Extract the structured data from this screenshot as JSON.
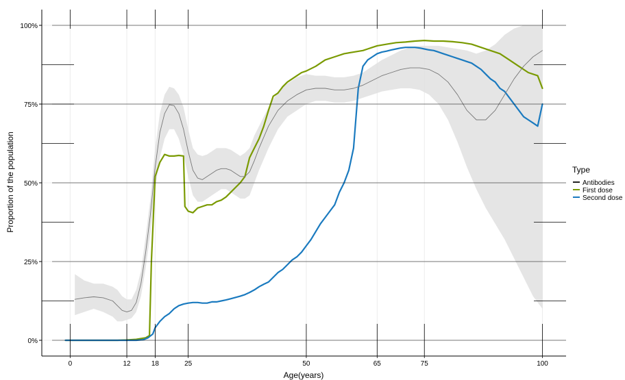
{
  "chart_data": {
    "type": "line",
    "title": "",
    "xlabel": "Age(years)",
    "ylabel": "Proportion of the population",
    "x_ticks": [
      0,
      12,
      18,
      25,
      50,
      65,
      75,
      100
    ],
    "y_ticks": [
      0,
      0.25,
      0.5,
      0.75,
      1.0
    ],
    "y_tick_labels": [
      "0%",
      "25%",
      "50%",
      "75%",
      "100%"
    ],
    "xlim": [
      -6,
      105
    ],
    "ylim": [
      -0.05,
      1.05
    ],
    "legend": {
      "title": "Type",
      "position": "right",
      "entries": [
        {
          "label": "Antibodies",
          "color": "#222222"
        },
        {
          "label": "First dose",
          "color": "#7a9a01"
        },
        {
          "label": "Second dose",
          "color": "#1a7abf"
        }
      ]
    },
    "colors": {
      "antibodies_line": "#777777",
      "ribbon": "#e0e0e0",
      "first_dose": "#7a9a01",
      "second_dose": "#1a7abf"
    },
    "series": [
      {
        "name": "First dose",
        "x": [
          -1,
          5,
          10,
          12,
          14,
          16,
          16.8,
          17.2,
          18,
          19,
          20,
          21,
          22,
          23,
          24,
          24.3,
          25,
          26,
          27,
          28,
          29,
          30,
          31,
          32,
          33,
          34,
          35,
          36,
          37,
          38,
          39,
          40,
          41,
          42,
          43,
          44,
          45,
          46,
          47,
          48,
          49,
          50,
          52,
          54,
          56,
          58,
          60,
          62,
          63,
          64,
          65,
          67,
          69,
          71,
          73,
          75,
          77,
          79,
          81,
          83,
          85,
          87,
          89,
          91,
          93,
          95,
          97,
          99,
          100
        ],
        "values": [
          0,
          0,
          0,
          0.001,
          0.003,
          0.008,
          0.015,
          0.25,
          0.52,
          0.565,
          0.59,
          0.585,
          0.585,
          0.587,
          0.585,
          0.425,
          0.41,
          0.405,
          0.42,
          0.425,
          0.43,
          0.43,
          0.44,
          0.445,
          0.455,
          0.47,
          0.485,
          0.5,
          0.52,
          0.58,
          0.61,
          0.64,
          0.68,
          0.73,
          0.775,
          0.785,
          0.805,
          0.82,
          0.83,
          0.84,
          0.85,
          0.855,
          0.87,
          0.89,
          0.9,
          0.91,
          0.915,
          0.92,
          0.925,
          0.93,
          0.935,
          0.94,
          0.945,
          0.947,
          0.95,
          0.952,
          0.95,
          0.95,
          0.948,
          0.945,
          0.94,
          0.93,
          0.92,
          0.91,
          0.89,
          0.87,
          0.85,
          0.84,
          0.8
        ]
      },
      {
        "name": "Second dose",
        "x": [
          -1,
          5,
          10,
          12,
          14,
          15.5,
          16.5,
          17.5,
          18,
          19,
          20,
          21,
          22,
          23,
          24,
          25,
          26,
          27,
          28,
          29,
          30,
          31,
          32,
          33,
          34,
          35,
          36,
          37,
          38,
          39,
          40,
          41,
          42,
          43,
          44,
          45,
          46,
          47,
          48,
          49,
          50,
          51,
          52,
          53,
          54,
          55,
          56,
          57,
          58,
          59,
          60,
          61,
          62,
          63,
          64,
          65,
          66,
          67,
          68,
          69,
          70,
          71,
          72,
          73,
          74,
          75,
          76,
          77,
          78,
          79,
          80,
          81,
          82,
          83,
          84,
          85,
          86,
          87,
          88,
          89,
          90,
          91,
          92,
          93,
          94,
          95,
          96,
          97,
          98,
          99,
          100
        ],
        "values": [
          0,
          0,
          0,
          0,
          0,
          0.002,
          0.008,
          0.02,
          0.04,
          0.06,
          0.075,
          0.085,
          0.1,
          0.11,
          0.115,
          0.118,
          0.12,
          0.12,
          0.118,
          0.118,
          0.122,
          0.122,
          0.125,
          0.128,
          0.132,
          0.136,
          0.14,
          0.145,
          0.152,
          0.16,
          0.17,
          0.178,
          0.185,
          0.2,
          0.215,
          0.225,
          0.24,
          0.255,
          0.265,
          0.28,
          0.3,
          0.32,
          0.345,
          0.37,
          0.39,
          0.41,
          0.43,
          0.47,
          0.5,
          0.54,
          0.61,
          0.8,
          0.87,
          0.89,
          0.9,
          0.91,
          0.915,
          0.918,
          0.922,
          0.925,
          0.928,
          0.93,
          0.93,
          0.93,
          0.928,
          0.925,
          0.922,
          0.92,
          0.915,
          0.91,
          0.905,
          0.9,
          0.895,
          0.89,
          0.885,
          0.88,
          0.87,
          0.86,
          0.845,
          0.83,
          0.82,
          0.8,
          0.79,
          0.77,
          0.75,
          0.73,
          0.71,
          0.7,
          0.69,
          0.68,
          0.75
        ]
      },
      {
        "name": "Antibodies",
        "x": [
          1,
          3,
          5,
          7,
          9,
          10,
          11,
          12,
          13,
          14,
          15,
          16,
          17,
          18,
          19,
          20,
          21,
          22,
          23,
          24,
          25,
          26,
          27,
          28,
          29,
          30,
          31,
          32,
          33,
          34,
          35,
          36,
          37,
          38,
          39,
          40,
          42,
          44,
          46,
          48,
          50,
          52,
          54,
          56,
          58,
          60,
          62,
          64,
          66,
          68,
          70,
          72,
          74,
          76,
          78,
          80,
          82,
          84,
          86,
          88,
          90,
          92,
          94,
          96,
          98,
          100
        ],
        "values": [
          0.13,
          0.135,
          0.138,
          0.135,
          0.125,
          0.11,
          0.095,
          0.09,
          0.095,
          0.12,
          0.18,
          0.28,
          0.4,
          0.55,
          0.66,
          0.72,
          0.748,
          0.745,
          0.72,
          0.67,
          0.6,
          0.54,
          0.515,
          0.51,
          0.52,
          0.53,
          0.54,
          0.545,
          0.545,
          0.54,
          0.53,
          0.52,
          0.52,
          0.535,
          0.57,
          0.61,
          0.68,
          0.73,
          0.76,
          0.78,
          0.795,
          0.8,
          0.8,
          0.795,
          0.795,
          0.8,
          0.81,
          0.825,
          0.84,
          0.85,
          0.86,
          0.865,
          0.865,
          0.86,
          0.845,
          0.82,
          0.78,
          0.73,
          0.7,
          0.7,
          0.73,
          0.78,
          0.83,
          0.87,
          0.9,
          0.92
        ]
      }
    ],
    "ribbon": {
      "name": "Antibodies confidence band",
      "x": [
        1,
        3,
        5,
        7,
        9,
        10,
        11,
        12,
        13,
        14,
        15,
        16,
        17,
        18,
        19,
        20,
        21,
        22,
        23,
        24,
        25,
        26,
        27,
        28,
        29,
        30,
        31,
        32,
        33,
        34,
        35,
        36,
        37,
        38,
        39,
        40,
        42,
        44,
        46,
        48,
        50,
        52,
        54,
        56,
        58,
        60,
        62,
        64,
        66,
        68,
        70,
        72,
        74,
        76,
        78,
        80,
        82,
        84,
        86,
        88,
        90,
        92,
        94,
        96,
        98,
        100
      ],
      "lower": [
        0.08,
        0.09,
        0.1,
        0.09,
        0.075,
        0.06,
        0.06,
        0.065,
        0.07,
        0.09,
        0.14,
        0.23,
        0.34,
        0.48,
        0.58,
        0.64,
        0.67,
        0.67,
        0.64,
        0.59,
        0.52,
        0.46,
        0.44,
        0.44,
        0.45,
        0.46,
        0.47,
        0.48,
        0.48,
        0.47,
        0.46,
        0.45,
        0.45,
        0.46,
        0.5,
        0.54,
        0.61,
        0.67,
        0.71,
        0.73,
        0.75,
        0.76,
        0.76,
        0.755,
        0.755,
        0.76,
        0.77,
        0.78,
        0.79,
        0.795,
        0.8,
        0.8,
        0.795,
        0.78,
        0.75,
        0.7,
        0.63,
        0.55,
        0.48,
        0.42,
        0.37,
        0.32,
        0.26,
        0.2,
        0.14,
        0.1
      ],
      "upper": [
        0.21,
        0.19,
        0.18,
        0.18,
        0.17,
        0.16,
        0.14,
        0.13,
        0.13,
        0.16,
        0.22,
        0.33,
        0.45,
        0.61,
        0.72,
        0.78,
        0.805,
        0.8,
        0.78,
        0.74,
        0.67,
        0.61,
        0.59,
        0.585,
        0.59,
        0.6,
        0.61,
        0.61,
        0.61,
        0.605,
        0.595,
        0.585,
        0.595,
        0.61,
        0.65,
        0.68,
        0.74,
        0.79,
        0.815,
        0.835,
        0.845,
        0.84,
        0.84,
        0.835,
        0.835,
        0.84,
        0.85,
        0.87,
        0.89,
        0.905,
        0.92,
        0.93,
        0.935,
        0.935,
        0.935,
        0.93,
        0.925,
        0.92,
        0.91,
        0.92,
        0.94,
        0.97,
        0.99,
        1.0,
        1.0,
        1.0
      ]
    }
  }
}
